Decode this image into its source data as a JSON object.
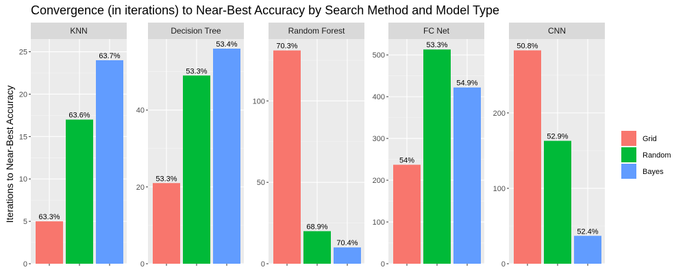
{
  "chart_data": {
    "type": "bar",
    "title": "Convergence (in iterations) to Near-Best Accuracy by Search Method and Model Type",
    "ylabel": "Iterations to Near-Best Accuracy",
    "xlabel": "",
    "legend_position": "right",
    "grid": true,
    "series_names": [
      "Grid",
      "Random",
      "Bayes"
    ],
    "colors": [
      "#F8766D",
      "#00BA38",
      "#619CFF"
    ],
    "facets": [
      {
        "name": "KNN",
        "ylim": [
          0,
          26.5
        ],
        "yticks": [
          0,
          5,
          10,
          15,
          20,
          25
        ],
        "values": [
          5,
          17,
          24
        ],
        "labels": [
          "63.3%",
          "63.6%",
          "63.7%"
        ]
      },
      {
        "name": "Decision Tree",
        "ylim": [
          0,
          58.5
        ],
        "yticks": [
          0,
          20,
          40
        ],
        "values": [
          21,
          49,
          56
        ],
        "labels": [
          "53.3%",
          "53.3%",
          "53.4%"
        ]
      },
      {
        "name": "Random Forest",
        "ylim": [
          0,
          138
        ],
        "yticks": [
          0,
          50,
          100
        ],
        "values": [
          131,
          20,
          10
        ],
        "labels": [
          "70.3%",
          "68.9%",
          "70.4%"
        ]
      },
      {
        "name": "FC Net",
        "ylim": [
          0,
          538
        ],
        "yticks": [
          0,
          100,
          200,
          300,
          400,
          500
        ],
        "values": [
          237,
          513,
          422
        ],
        "labels": [
          "54%",
          "53.3%",
          "54.9%"
        ]
      },
      {
        "name": "CNN",
        "ylim": [
          0,
          298
        ],
        "yticks": [
          0,
          100,
          200
        ],
        "values": [
          283,
          163,
          37
        ],
        "labels": [
          "50.8%",
          "52.9%",
          "52.4%"
        ]
      }
    ]
  }
}
